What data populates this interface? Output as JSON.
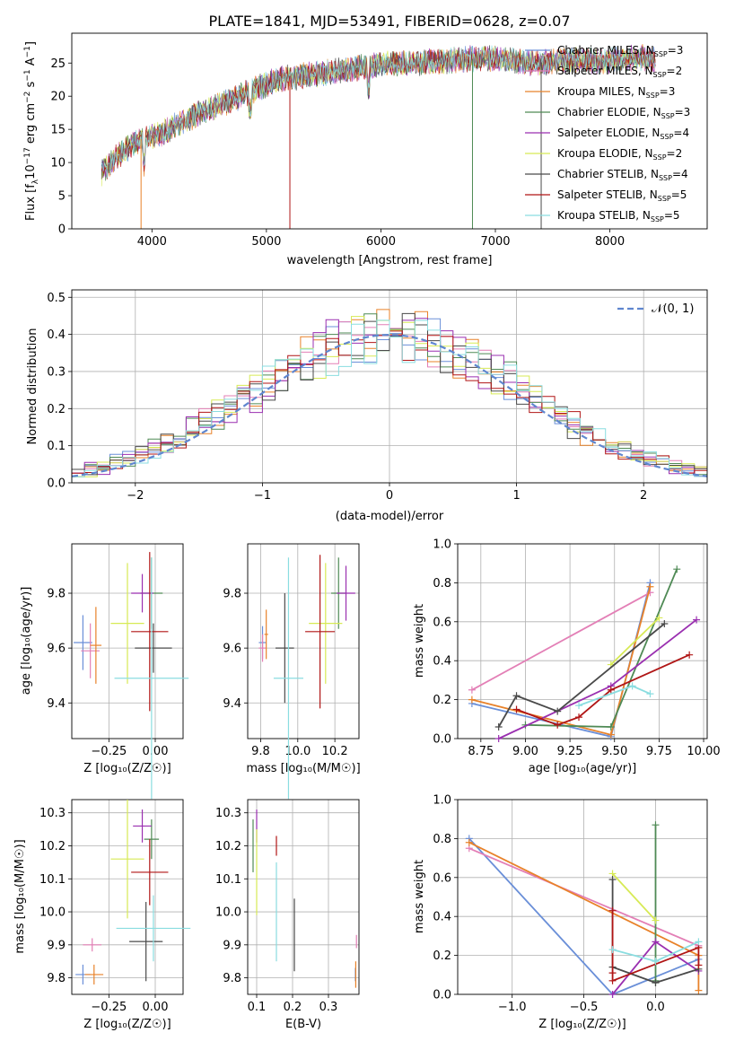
{
  "figure_title": "PLATE=1841, MJD=53491, FIBERID=0628, z=0.07",
  "models": [
    {
      "name": "Chabrier MILES",
      "n": "3",
      "color": "#6a8fd8"
    },
    {
      "name": "Salpeter MILES",
      "n": "2",
      "color": "#e37fb6"
    },
    {
      "name": "Kroupa MILES",
      "n": "3",
      "color": "#e8822a"
    },
    {
      "name": "Chabrier ELODIE",
      "n": "3",
      "color": "#4f8a55"
    },
    {
      "name": "Salpeter ELODIE",
      "n": "4",
      "color": "#9a2fb0"
    },
    {
      "name": "Kroupa ELODIE",
      "n": "2",
      "color": "#d7ea55"
    },
    {
      "name": "Chabrier STELIB",
      "n": "4",
      "color": "#4a4a4a"
    },
    {
      "name": "Salpeter STELIB",
      "n": "5",
      "color": "#b01515"
    },
    {
      "name": "Kroupa STELIB",
      "n": "5",
      "color": "#8adde0"
    }
  ],
  "chart_data": [
    {
      "type": "line",
      "id": "spectrum",
      "xlabel": "wavelength [Angstrom, rest frame]",
      "ylabel": "Flux [f_λ10^-17 erg cm^-2 s^-1 A^-1]",
      "xlim": [
        3300,
        8850
      ],
      "ylim": [
        0,
        29.5
      ],
      "xticks": [
        "4000",
        "5000",
        "6000",
        "7000",
        "8000"
      ],
      "yticks": [
        "0",
        "5",
        "10",
        "15",
        "20",
        "25"
      ],
      "continuum_x": [
        3560,
        3700,
        3900,
        4100,
        4300,
        4500,
        4700,
        4900,
        5100,
        5300,
        5500,
        5700,
        5900,
        6100,
        6300,
        6500,
        6700,
        6900,
        7100,
        7300,
        7500,
        7700,
        7900,
        8100,
        8300,
        8400
      ],
      "continuum_y": [
        8.5,
        11.0,
        13.5,
        14.5,
        16.5,
        18.0,
        19.5,
        21.0,
        22.5,
        23.0,
        23.5,
        24.0,
        24.5,
        25.0,
        25.0,
        25.3,
        25.5,
        25.8,
        25.5,
        25.0,
        25.2,
        25.5,
        25.3,
        25.6,
        25.8,
        25.5
      ],
      "legend": "top-right"
    },
    {
      "type": "line",
      "id": "residual-histogram",
      "xlabel": "(data-model)/error",
      "ylabel": "Normed distribution",
      "xlim": [
        -2.5,
        2.5
      ],
      "ylim": [
        0,
        0.52
      ],
      "xticks": [
        "−2",
        "−1",
        "0",
        "1",
        "2"
      ],
      "yticks": [
        "0.0",
        "0.1",
        "0.2",
        "0.3",
        "0.4",
        "0.5"
      ],
      "grid": true,
      "reference_label": "𝒩(0, 1)",
      "legend": "top-right"
    },
    {
      "type": "scatter",
      "id": "age-vs-Z",
      "xlabel": "Z [log₁₀(Z/Z☉)]",
      "ylabel": "age  [log₁₀(age/yr)]",
      "xlim": [
        -0.45,
        0.15
      ],
      "ylim": [
        9.27,
        9.98
      ],
      "xticks": [
        {
          "v": -0.25,
          "t": "−0.25"
        },
        {
          "v": 0,
          "t": "0.00"
        }
      ],
      "yticks": [
        {
          "v": 9.4,
          "t": "9.4"
        },
        {
          "v": 9.6,
          "t": "9.6"
        },
        {
          "v": 9.8,
          "t": "9.8"
        }
      ],
      "grid": true,
      "points": [
        {
          "m": 0,
          "x": -0.39,
          "xe": 0.05,
          "y": 9.62,
          "ye": 0.1
        },
        {
          "m": 1,
          "x": -0.35,
          "xe": 0.05,
          "y": 9.59,
          "ye": 0.1
        },
        {
          "m": 2,
          "x": -0.32,
          "xe": 0.03,
          "y": 9.61,
          "ye": 0.14
        },
        {
          "m": 3,
          "x": -0.02,
          "xe": 0.06,
          "y": 9.8,
          "ye": 0.13
        },
        {
          "m": 4,
          "x": -0.07,
          "xe": 0.06,
          "y": 9.8,
          "ye": 0.07
        },
        {
          "m": 5,
          "x": -0.15,
          "xe": 0.09,
          "y": 9.69,
          "ye": 0.22
        },
        {
          "m": 6,
          "x": -0.01,
          "xe": 0.1,
          "y": 9.6,
          "ye": 0.09
        },
        {
          "m": 7,
          "x": -0.03,
          "xe": 0.1,
          "y": 9.66,
          "ye": 0.29
        },
        {
          "m": 8,
          "x": -0.02,
          "xe": 0.2,
          "y": 9.49,
          "ye": 0.44
        }
      ]
    },
    {
      "type": "scatter",
      "id": "age-vs-mass",
      "xlabel": "mass [log₁₀(M/M☉)]",
      "ylabel": "",
      "xlim": [
        9.73,
        10.33
      ],
      "ylim": [
        9.27,
        9.98
      ],
      "xticks": [
        {
          "v": 9.8,
          "t": "9.8"
        },
        {
          "v": 10.0,
          "t": "10.0"
        },
        {
          "v": 10.2,
          "t": "10.2"
        }
      ],
      "yticks": [
        {
          "v": 9.4,
          "t": "9.4"
        },
        {
          "v": 9.6,
          "t": "9.6"
        },
        {
          "v": 9.8,
          "t": "9.8"
        }
      ],
      "grid": true,
      "points": [
        {
          "m": 0,
          "x": 9.81,
          "xe": 0.02,
          "y": 9.62,
          "ye": 0.06
        },
        {
          "m": 1,
          "x": 9.81,
          "xe": 0.02,
          "y": 9.6,
          "ye": 0.05
        },
        {
          "m": 2,
          "x": 9.83,
          "xe": 0.01,
          "y": 9.65,
          "ye": 0.09
        },
        {
          "m": 3,
          "x": 10.22,
          "xe": 0.04,
          "y": 9.8,
          "ye": 0.13
        },
        {
          "m": 4,
          "x": 10.26,
          "xe": 0.05,
          "y": 9.8,
          "ye": 0.1
        },
        {
          "m": 5,
          "x": 10.15,
          "xe": 0.09,
          "y": 9.69,
          "ye": 0.22
        },
        {
          "m": 6,
          "x": 9.93,
          "xe": 0.05,
          "y": 9.6,
          "ye": 0.2
        },
        {
          "m": 7,
          "x": 10.12,
          "xe": 0.08,
          "y": 9.66,
          "ye": 0.28
        },
        {
          "m": 8,
          "x": 9.95,
          "xe": 0.08,
          "y": 9.49,
          "ye": 0.44
        }
      ]
    },
    {
      "type": "line",
      "id": "mass-weight-vs-age",
      "xlabel": "age  [log₁₀(age/yr)]",
      "ylabel": "mass weight",
      "xlim": [
        8.62,
        10.02
      ],
      "ylim": [
        0,
        1.0
      ],
      "xticks": [
        {
          "v": 8.75,
          "t": "8.75"
        },
        {
          "v": 9.0,
          "t": "9.00"
        },
        {
          "v": 9.25,
          "t": "9.25"
        },
        {
          "v": 9.5,
          "t": "9.50"
        },
        {
          "v": 9.75,
          "t": "9.75"
        },
        {
          "v": 10.0,
          "t": "10.00"
        }
      ],
      "yticks": [
        {
          "v": 0,
          "t": "0.0"
        },
        {
          "v": 0.2,
          "t": "0.2"
        },
        {
          "v": 0.4,
          "t": "0.4"
        },
        {
          "v": 0.6,
          "t": "0.6"
        },
        {
          "v": 0.8,
          "t": "0.8"
        },
        {
          "v": 1.0,
          "t": "1.0"
        }
      ],
      "grid": true,
      "series": [
        {
          "m": 0,
          "x": [
            8.7,
            9.48,
            9.7
          ],
          "y": [
            0.18,
            0.01,
            0.8
          ]
        },
        {
          "m": 1,
          "x": [
            8.7,
            9.7
          ],
          "y": [
            0.25,
            0.75
          ]
        },
        {
          "m": 2,
          "x": [
            8.7,
            9.48,
            9.7
          ],
          "y": [
            0.2,
            0.02,
            0.78
          ]
        },
        {
          "m": 3,
          "x": [
            9.0,
            9.48,
            9.85
          ],
          "y": [
            0.07,
            0.06,
            0.87
          ]
        },
        {
          "m": 4,
          "x": [
            8.85,
            9.48,
            9.96
          ],
          "y": [
            0.0,
            0.27,
            0.61
          ]
        },
        {
          "m": 5,
          "x": [
            9.48,
            9.75
          ],
          "y": [
            0.38,
            0.62
          ]
        },
        {
          "m": 6,
          "x": [
            8.85,
            8.95,
            9.18,
            9.78
          ],
          "y": [
            0.06,
            0.22,
            0.14,
            0.59
          ]
        },
        {
          "m": 7,
          "x": [
            8.95,
            9.18,
            9.3,
            9.48,
            9.92
          ],
          "y": [
            0.15,
            0.07,
            0.11,
            0.25,
            0.43
          ]
        },
        {
          "m": 8,
          "x": [
            9.3,
            9.6,
            9.7
          ],
          "y": [
            0.17,
            0.27,
            0.23
          ]
        }
      ]
    },
    {
      "type": "scatter",
      "id": "mass-vs-Z",
      "xlabel": "Z [log₁₀(Z/Z☉)]",
      "ylabel": "mass [log₁₀(M/M☉)]",
      "xlim": [
        -0.45,
        0.15
      ],
      "ylim": [
        9.75,
        10.34
      ],
      "xticks": [
        {
          "v": -0.25,
          "t": "−0.25"
        },
        {
          "v": 0,
          "t": "0.00"
        }
      ],
      "yticks": [
        {
          "v": 9.8,
          "t": "9.8"
        },
        {
          "v": 9.9,
          "t": "9.9"
        },
        {
          "v": 10.0,
          "t": "10.0"
        },
        {
          "v": 10.1,
          "t": "10.1"
        },
        {
          "v": 10.2,
          "t": "10.2"
        },
        {
          "v": 10.3,
          "t": "10.3"
        }
      ],
      "grid": true,
      "points": [
        {
          "m": 0,
          "x": -0.39,
          "xe": 0.04,
          "y": 9.81,
          "ye": 0.03
        },
        {
          "m": 1,
          "x": -0.34,
          "xe": 0.05,
          "y": 9.9,
          "ye": 0.02
        },
        {
          "m": 2,
          "x": -0.33,
          "xe": 0.05,
          "y": 9.81,
          "ye": 0.03
        },
        {
          "m": 3,
          "x": -0.02,
          "xe": 0.04,
          "y": 10.22,
          "ye": 0.06
        },
        {
          "m": 4,
          "x": -0.07,
          "xe": 0.05,
          "y": 10.26,
          "ye": 0.05
        },
        {
          "m": 5,
          "x": -0.15,
          "xe": 0.09,
          "y": 10.16,
          "ye": 0.18
        },
        {
          "m": 6,
          "x": -0.05,
          "xe": 0.09,
          "y": 9.91,
          "ye": 0.12
        },
        {
          "m": 7,
          "x": -0.03,
          "xe": 0.1,
          "y": 10.12,
          "ye": 0.1
        },
        {
          "m": 8,
          "x": -0.01,
          "xe": 0.2,
          "y": 9.95,
          "ye": 0.1
        }
      ]
    },
    {
      "type": "scatter",
      "id": "mass-vs-EBV",
      "xlabel": "E(B-V)",
      "ylabel": "",
      "xlim": [
        0.075,
        0.385
      ],
      "ylim": [
        9.75,
        10.34
      ],
      "xticks": [
        {
          "v": 0.1,
          "t": "0.1"
        },
        {
          "v": 0.2,
          "t": "0.2"
        },
        {
          "v": 0.3,
          "t": "0.3"
        }
      ],
      "yticks": [
        {
          "v": 9.8,
          "t": "9.8"
        },
        {
          "v": 9.9,
          "t": "9.9"
        },
        {
          "v": 10.0,
          "t": "10.0"
        },
        {
          "v": 10.1,
          "t": "10.1"
        },
        {
          "v": 10.2,
          "t": "10.2"
        },
        {
          "v": 10.3,
          "t": "10.3"
        }
      ],
      "grid": true,
      "points": [
        {
          "m": 0,
          "x": 0.375,
          "xe": 0,
          "y": 9.81,
          "ye": 0.02
        },
        {
          "m": 1,
          "x": 0.378,
          "xe": 0,
          "y": 9.91,
          "ye": 0.02
        },
        {
          "m": 2,
          "x": 0.376,
          "xe": 0,
          "y": 9.81,
          "ye": 0.04
        },
        {
          "m": 3,
          "x": 0.09,
          "xe": 0,
          "y": 10.2,
          "ye": 0.08
        },
        {
          "m": 4,
          "x": 0.1,
          "xe": 0,
          "y": 10.26,
          "ye": 0.05
        },
        {
          "m": 5,
          "x": 0.1,
          "xe": 0,
          "y": 10.12,
          "ye": 0.13
        },
        {
          "m": 6,
          "x": 0.205,
          "xe": 0,
          "y": 9.93,
          "ye": 0.11
        },
        {
          "m": 7,
          "x": 0.155,
          "xe": 0,
          "y": 10.2,
          "ye": 0.03
        },
        {
          "m": 8,
          "x": 0.155,
          "xe": 0,
          "y": 10.0,
          "ye": 0.15
        }
      ]
    },
    {
      "type": "line",
      "id": "mass-weight-vs-Z",
      "xlabel": "Z [log₁₀(Z/Z☉)]",
      "ylabel": "mass weight",
      "xlim": [
        -1.38,
        0.36
      ],
      "ylim": [
        0,
        1.0
      ],
      "xticks": [
        {
          "v": -1.0,
          "t": "−1.0"
        },
        {
          "v": -0.5,
          "t": "−0.5"
        },
        {
          "v": 0,
          "t": "0.0"
        }
      ],
      "yticks": [
        {
          "v": 0,
          "t": "0.0"
        },
        {
          "v": 0.2,
          "t": "0.2"
        },
        {
          "v": 0.4,
          "t": "0.4"
        },
        {
          "v": 0.6,
          "t": "0.6"
        },
        {
          "v": 0.8,
          "t": "0.8"
        },
        {
          "v": 1.0,
          "t": "1.0"
        }
      ],
      "grid": true,
      "series": [
        {
          "m": 0,
          "x": [
            -1.3,
            -0.3,
            0.3
          ],
          "y": [
            0.8,
            0.0,
            0.18
          ]
        },
        {
          "m": 1,
          "x": [
            -1.3,
            0.3
          ],
          "y": [
            0.75,
            0.25
          ]
        },
        {
          "m": 2,
          "x": [
            -1.3,
            0.3,
            0.3
          ],
          "y": [
            0.78,
            0.2,
            0.02
          ]
        },
        {
          "m": 3,
          "x": [
            0.0,
            0.0,
            0.0
          ],
          "y": [
            0.87,
            0.06,
            0.07
          ]
        },
        {
          "m": 4,
          "x": [
            -0.3,
            0.0,
            0.3
          ],
          "y": [
            0.0,
            0.27,
            0.12
          ]
        },
        {
          "m": 5,
          "x": [
            -0.3,
            0.0
          ],
          "y": [
            0.62,
            0.38
          ]
        },
        {
          "m": 6,
          "x": [
            -0.3,
            -0.3,
            0.0,
            0.3
          ],
          "y": [
            0.59,
            0.14,
            0.06,
            0.13
          ]
        },
        {
          "m": 7,
          "x": [
            -0.3,
            -0.3,
            -0.3,
            0.3,
            0.3
          ],
          "y": [
            0.43,
            0.11,
            0.07,
            0.24,
            0.15
          ]
        },
        {
          "m": 8,
          "x": [
            -0.3,
            0.0,
            0.3
          ],
          "y": [
            0.23,
            0.17,
            0.27
          ]
        }
      ]
    }
  ]
}
